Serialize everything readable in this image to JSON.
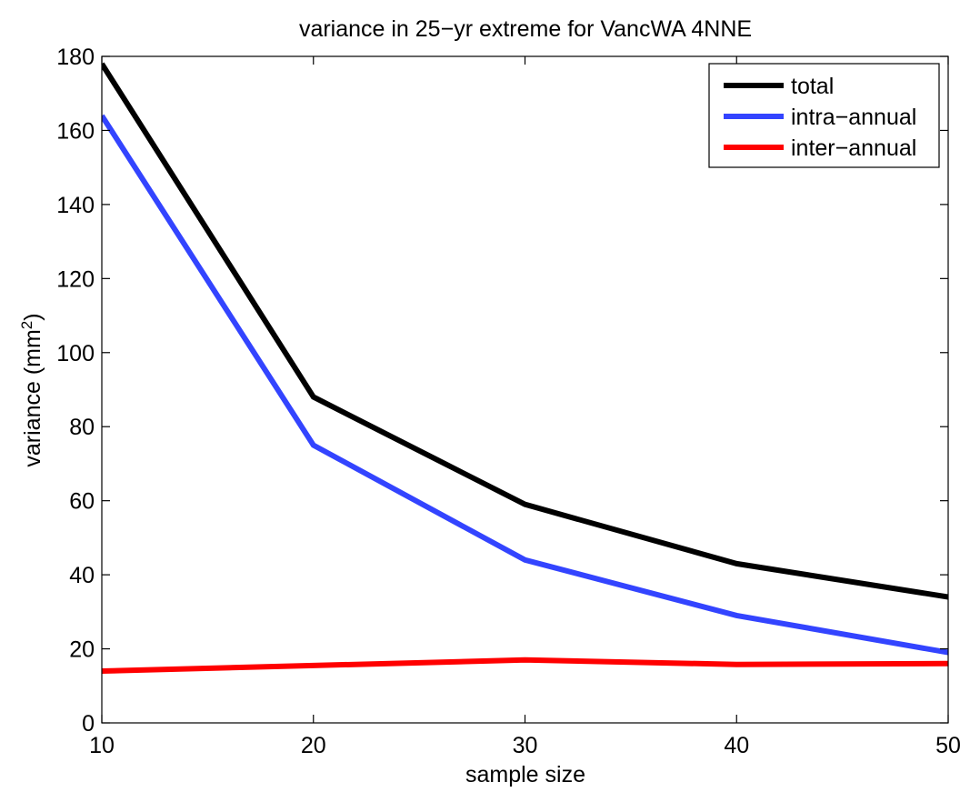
{
  "chart_data": {
    "type": "line",
    "title": "variance in 25−yr extreme for VancWA 4NNE",
    "xlabel": "sample size",
    "ylabel_main": "variance (mm",
    "ylabel_sup": "2",
    "ylabel_close": ")",
    "xlim": [
      10,
      50
    ],
    "ylim": [
      0,
      180
    ],
    "xticks": [
      10,
      20,
      30,
      40,
      50
    ],
    "yticks": [
      0,
      20,
      40,
      60,
      80,
      100,
      120,
      140,
      160,
      180
    ],
    "x": [
      10,
      20,
      30,
      40,
      50
    ],
    "grid": false,
    "legend_position": "top-right",
    "series": [
      {
        "name": "total",
        "color": "#000000",
        "values": [
          178,
          88,
          59,
          43,
          34
        ]
      },
      {
        "name": "intra−annual",
        "color": "#3344ff",
        "values": [
          164,
          75,
          44,
          29,
          19
        ]
      },
      {
        "name": "inter−annual",
        "color": "#ff0000",
        "values": [
          14,
          15.5,
          17,
          15.8,
          16
        ]
      }
    ]
  }
}
